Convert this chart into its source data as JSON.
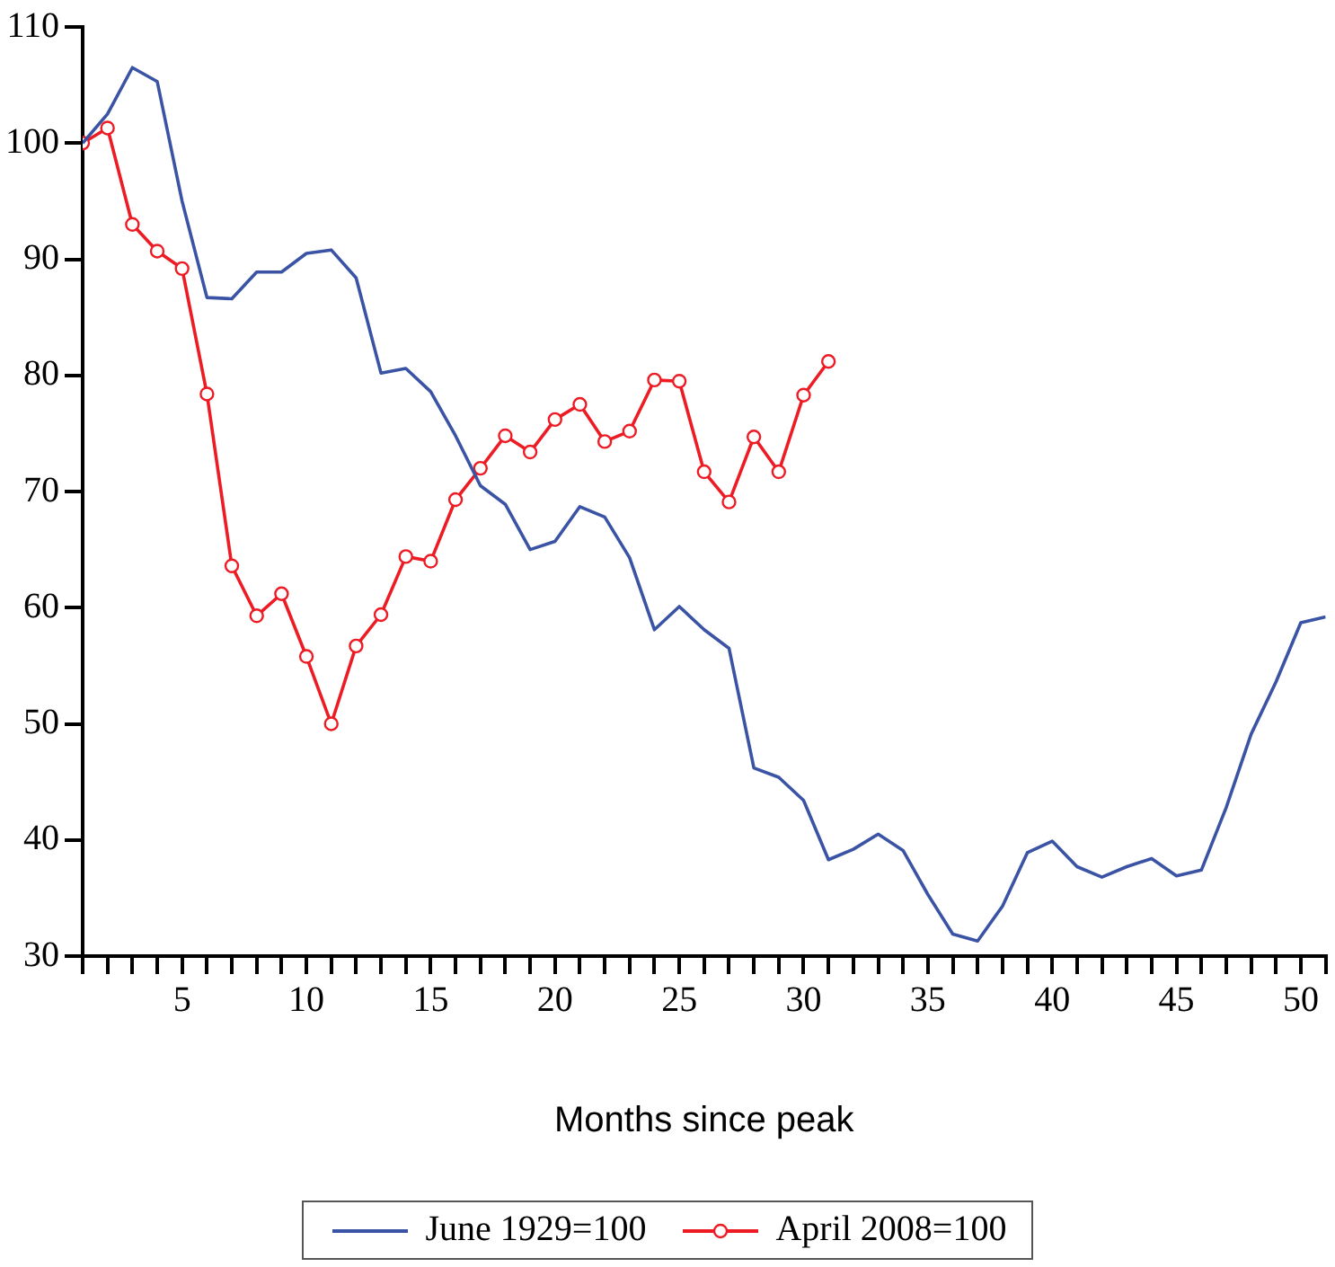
{
  "chart_data": {
    "type": "line",
    "xlabel": "Months since peak",
    "x": [
      1,
      2,
      3,
      4,
      5,
      6,
      7,
      8,
      9,
      10,
      11,
      12,
      13,
      14,
      15,
      16,
      17,
      18,
      19,
      20,
      21,
      22,
      23,
      24,
      25,
      26,
      27,
      28,
      29,
      30,
      31,
      32,
      33,
      34,
      35,
      36,
      37,
      38,
      39,
      40,
      41,
      42,
      43,
      44,
      45,
      46,
      47,
      48,
      49,
      50,
      51
    ],
    "xlim": [
      1,
      51
    ],
    "xticks": [
      {
        "value": 1,
        "label": null
      },
      {
        "value": 2,
        "label": null
      },
      {
        "value": 3,
        "label": null
      },
      {
        "value": 4,
        "label": null
      },
      5,
      {
        "value": 6,
        "label": null
      },
      {
        "value": 7,
        "label": null
      },
      {
        "value": 8,
        "label": null
      },
      {
        "value": 9,
        "label": null
      },
      10,
      {
        "value": 11,
        "label": null
      },
      {
        "value": 12,
        "label": null
      },
      {
        "value": 13,
        "label": null
      },
      {
        "value": 14,
        "label": null
      },
      15,
      {
        "value": 16,
        "label": null
      },
      {
        "value": 17,
        "label": null
      },
      {
        "value": 18,
        "label": null
      },
      {
        "value": 19,
        "label": null
      },
      20,
      {
        "value": 21,
        "label": null
      },
      {
        "value": 22,
        "label": null
      },
      {
        "value": 23,
        "label": null
      },
      {
        "value": 24,
        "label": null
      },
      25,
      {
        "value": 26,
        "label": null
      },
      {
        "value": 27,
        "label": null
      },
      {
        "value": 28,
        "label": null
      },
      {
        "value": 29,
        "label": null
      },
      30,
      {
        "value": 31,
        "label": null
      },
      {
        "value": 32,
        "label": null
      },
      {
        "value": 33,
        "label": null
      },
      {
        "value": 34,
        "label": null
      },
      35,
      {
        "value": 36,
        "label": null
      },
      {
        "value": 37,
        "label": null
      },
      {
        "value": 38,
        "label": null
      },
      {
        "value": 39,
        "label": null
      },
      40,
      {
        "value": 41,
        "label": null
      },
      {
        "value": 42,
        "label": null
      },
      {
        "value": 43,
        "label": null
      },
      {
        "value": 44,
        "label": null
      },
      45,
      {
        "value": 46,
        "label": null
      },
      {
        "value": 47,
        "label": null
      },
      {
        "value": 48,
        "label": null
      },
      {
        "value": 49,
        "label": null
      },
      50,
      {
        "value": 51,
        "label": null
      }
    ],
    "ylim": [
      30,
      110
    ],
    "yticks": [
      30,
      40,
      50,
      60,
      70,
      80,
      90,
      100,
      110
    ],
    "grid": false,
    "legend": "bottom",
    "line_style": "solid",
    "series": [
      {
        "name": "June 1929=100",
        "color": "#3a53a4",
        "marker": "none",
        "values": [
          100,
          102.5,
          106.5,
          105.3,
          95,
          86.7,
          86.6,
          88.9,
          88.9,
          90.5,
          90.8,
          88.4,
          80.2,
          80.6,
          78.6,
          74.8,
          70.5,
          68.9,
          65,
          65.7,
          68.7,
          67.8,
          64.3,
          58.1,
          60.1,
          58.1,
          56.5,
          46.2,
          45.4,
          43.4,
          38.3,
          39.2,
          40.5,
          39.1,
          35.3,
          31.9,
          31.3,
          34.3,
          38.9,
          39.9,
          37.7,
          36.8,
          37.7,
          38.4,
          36.9,
          37.4,
          42.8,
          49.1,
          53.6,
          58.7,
          59.2
        ]
      },
      {
        "name": "April 2008=100",
        "color": "#ed1c24",
        "marker": "circle",
        "values": [
          100,
          101.3,
          93,
          90.7,
          89.2,
          78.4,
          63.6,
          59.3,
          61.2,
          55.8,
          50,
          56.7,
          59.4,
          64.4,
          64,
          69.3,
          72,
          74.8,
          73.4,
          76.2,
          77.5,
          74.3,
          75.2,
          79.6,
          79.5,
          71.7,
          69.1,
          74.7,
          71.7,
          78.3,
          81.2,
          null,
          null,
          null,
          null,
          null,
          null,
          null,
          null,
          null,
          null,
          null,
          null,
          null,
          null,
          null,
          null,
          null,
          null,
          null,
          null
        ]
      }
    ]
  }
}
